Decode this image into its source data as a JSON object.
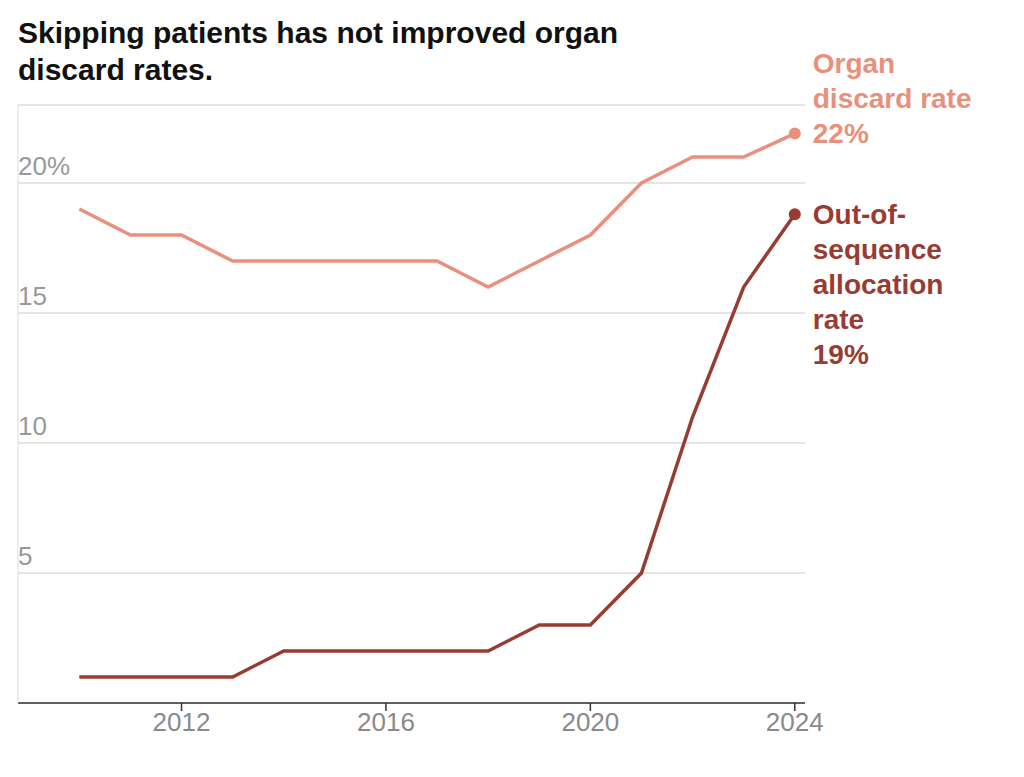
{
  "chart_data": {
    "type": "line",
    "title": "Skipping patients has not improved organ discard rates.",
    "x": [
      2010,
      2011,
      2012,
      2013,
      2014,
      2015,
      2016,
      2017,
      2018,
      2019,
      2020,
      2021,
      2022,
      2023,
      2024
    ],
    "xlim": [
      2008.8,
      2024.2
    ],
    "xticks": [
      2012,
      2016,
      2020,
      2024
    ],
    "ylim": [
      0,
      23
    ],
    "yticks": [
      5,
      10,
      15,
      {
        "value": 20,
        "label": "20%"
      }
    ],
    "grid": true,
    "series": [
      {
        "name": "Organ discard rate",
        "color": "#e8907c",
        "values": [
          19,
          18,
          18,
          17,
          17,
          17,
          17,
          17,
          16,
          17,
          18,
          20,
          21,
          21,
          21.9
        ],
        "annotation": "22%"
      },
      {
        "name": "Out-of-sequence allocation rate",
        "color": "#983c33",
        "values": [
          1,
          1,
          1,
          1,
          2,
          2,
          2,
          2,
          2,
          3,
          3,
          5,
          11,
          16,
          18.8
        ],
        "annotation": "19%"
      }
    ]
  }
}
